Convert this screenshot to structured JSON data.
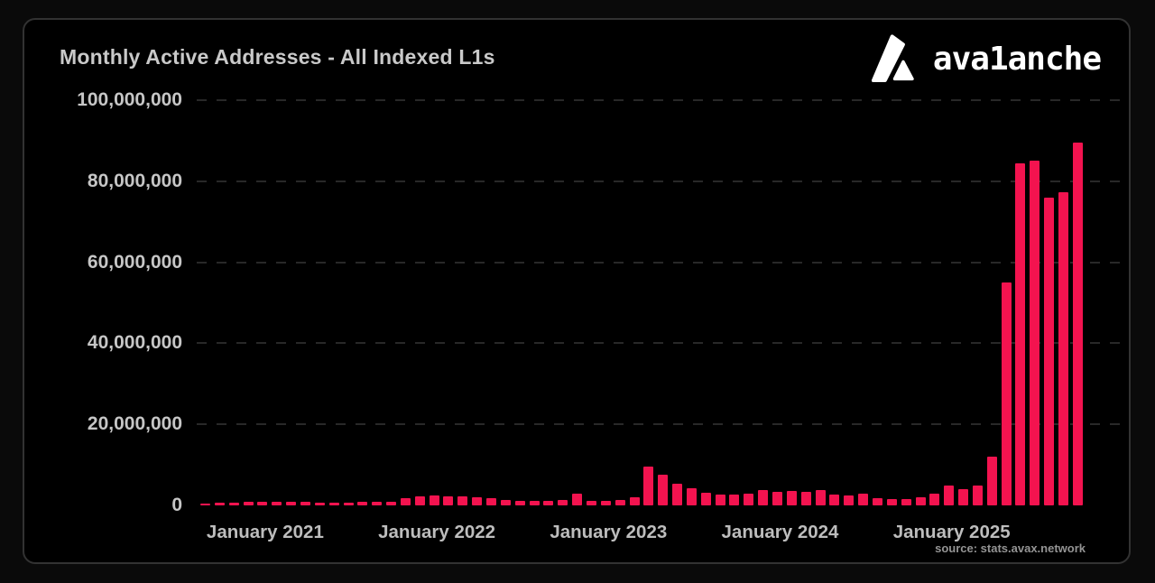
{
  "header": {
    "title": "Monthly Active Addresses - All Indexed L1s"
  },
  "logo": {
    "brand_text": "ava1anche",
    "mark": "avalanche-mountain-logo",
    "color": "#ffffff"
  },
  "source": {
    "text": "source: stats.avax.network"
  },
  "chart_data": {
    "type": "bar",
    "title": "Monthly Active Addresses - All Indexed L1s",
    "xlabel": "",
    "ylabel": "",
    "legend": "none",
    "grid": "dashed-horizontal",
    "background": "#000000",
    "bar_color": "#f3134f",
    "ylim": [
      0,
      100000000
    ],
    "y_ticks": [
      0,
      20000000,
      40000000,
      60000000,
      80000000,
      100000000
    ],
    "y_tick_labels": [
      "0",
      "20,000,000",
      "40,000,000",
      "60,000,000",
      "80,000,000",
      "100,000,000"
    ],
    "x_ticks": [
      {
        "label": "January 2021",
        "month_index": 4
      },
      {
        "label": "January 2022",
        "month_index": 16
      },
      {
        "label": "January 2023",
        "month_index": 28
      },
      {
        "label": "January 2024",
        "month_index": 40
      },
      {
        "label": "January 2025",
        "month_index": 52
      }
    ],
    "categories": [
      "2020-09",
      "2020-10",
      "2020-11",
      "2020-12",
      "2021-01",
      "2021-02",
      "2021-03",
      "2021-04",
      "2021-05",
      "2021-06",
      "2021-07",
      "2021-08",
      "2021-09",
      "2021-10",
      "2021-11",
      "2021-12",
      "2022-01",
      "2022-02",
      "2022-03",
      "2022-04",
      "2022-05",
      "2022-06",
      "2022-07",
      "2022-08",
      "2022-09",
      "2022-10",
      "2022-11",
      "2022-12",
      "2023-01",
      "2023-02",
      "2023-03",
      "2023-04",
      "2023-05",
      "2023-06",
      "2023-07",
      "2023-08",
      "2023-09",
      "2023-10",
      "2023-11",
      "2023-12",
      "2024-01",
      "2024-02",
      "2024-03",
      "2024-04",
      "2024-05",
      "2024-06",
      "2024-07",
      "2024-08",
      "2024-09",
      "2024-10",
      "2024-11",
      "2024-12",
      "2025-01",
      "2025-02",
      "2025-03",
      "2025-04",
      "2025-05",
      "2025-06",
      "2025-07",
      "2025-08",
      "2025-09",
      "2025-10"
    ],
    "values": [
      500000,
      600000,
      700000,
      800000,
      800000,
      800000,
      800000,
      800000,
      700000,
      700000,
      700000,
      800000,
      800000,
      1000000,
      1800000,
      2200000,
      2400000,
      2200000,
      2200000,
      2000000,
      1800000,
      1300000,
      1100000,
      1100000,
      1100000,
      1300000,
      3000000,
      1200000,
      1200000,
      1300000,
      2000000,
      9500000,
      7500000,
      5300000,
      4200000,
      3200000,
      2600000,
      2700000,
      3000000,
      3700000,
      3300000,
      3500000,
      3300000,
      3700000,
      2600000,
      2400000,
      3000000,
      1800000,
      1500000,
      1600000,
      2000000,
      2900000,
      4800000,
      4100000,
      4800000,
      12000000,
      55000000,
      84500000,
      85000000,
      76000000,
      77200000,
      89500000
    ]
  }
}
